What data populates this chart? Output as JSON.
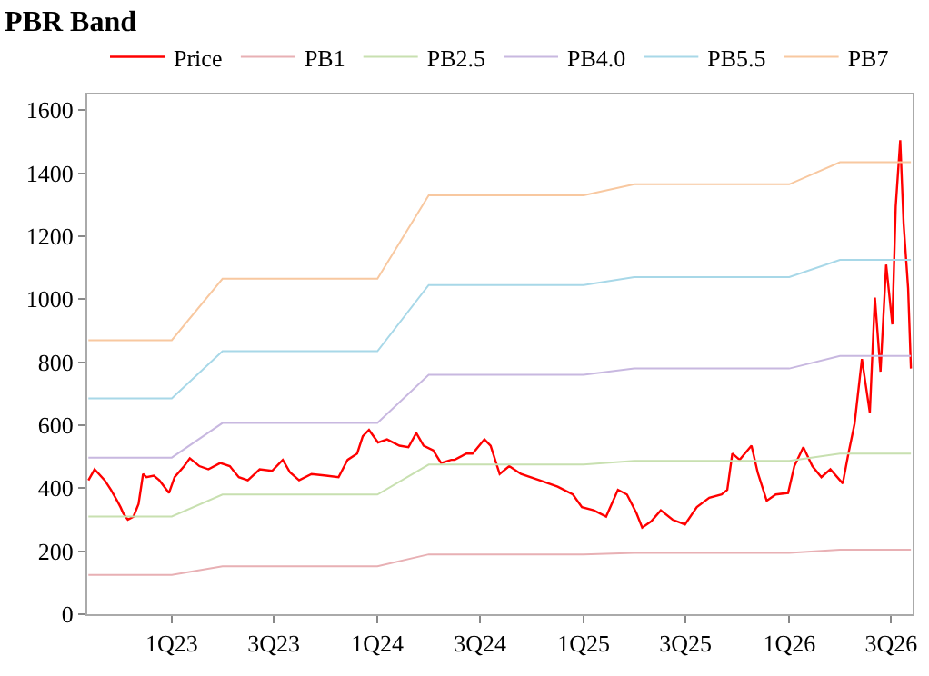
{
  "chart_data": {
    "type": "line",
    "title": "PBR Band",
    "x": [
      "2022-08-06",
      "2023-01-01",
      "2023-04-01",
      "2024-01-01",
      "2024-04-01",
      "2025-01-01",
      "2025-04-01",
      "2026-01-01",
      "2026-04-01",
      "2026-08-05"
    ],
    "series": [
      {
        "name": "Price",
        "color": "#ff0000",
        "x": [
          "2022-08-06",
          "2022-08-17",
          "2022-09-04",
          "2022-09-15",
          "2022-09-26",
          "2022-10-02",
          "2022-10-07",
          "2022-10-15",
          "2022-10-25",
          "2022-11-03",
          "2022-11-11",
          "2022-11-17",
          "2022-11-30",
          "2022-12-10",
          "2022-12-27",
          "2023-01-06",
          "2023-01-23",
          "2023-02-02",
          "2023-02-19",
          "2023-03-07",
          "2023-03-28",
          "2023-04-14",
          "2023-04-30",
          "2023-05-16",
          "2023-06-06",
          "2023-06-28",
          "2023-07-17",
          "2023-07-30",
          "2023-08-15",
          "2023-09-06",
          "2023-10-02",
          "2023-10-24",
          "2023-11-09",
          "2023-11-26",
          "2023-12-06",
          "2023-12-17",
          "2024-01-02",
          "2024-01-18",
          "2024-02-09",
          "2024-02-25",
          "2024-03-10",
          "2024-03-23",
          "2024-04-09",
          "2024-04-23",
          "2024-05-11",
          "2024-05-17",
          "2024-06-07",
          "2024-06-18",
          "2024-07-09",
          "2024-07-20",
          "2024-08-05",
          "2024-08-22",
          "2024-09-12",
          "2024-10-15",
          "2024-11-16",
          "2024-12-13",
          "2024-12-29",
          "2025-01-19",
          "2025-02-10",
          "2025-03-03",
          "2025-03-19",
          "2025-04-05",
          "2025-04-15",
          "2025-05-01",
          "2025-05-18",
          "2025-06-08",
          "2025-06-30",
          "2025-07-21",
          "2025-08-12",
          "2025-09-03",
          "2025-09-13",
          "2025-09-22",
          "2025-10-05",
          "2025-10-26",
          "2025-11-06",
          "2025-11-22",
          "2025-12-08",
          "2025-12-30",
          "2026-01-10",
          "2026-01-26",
          "2026-02-11",
          "2026-02-27",
          "2026-03-15",
          "2026-04-06",
          "2026-04-16",
          "2026-04-27",
          "2026-05-10",
          "2026-05-24",
          "2026-06-02",
          "2026-06-12",
          "2026-06-22",
          "2026-07-03",
          "2026-07-09",
          "2026-07-17",
          "2026-07-23",
          "2026-07-31",
          "2026-08-05"
        ],
        "values": [
          425,
          460,
          425,
          395,
          360,
          340,
          320,
          300,
          310,
          350,
          445,
          435,
          440,
          425,
          385,
          435,
          470,
          495,
          470,
          460,
          480,
          470,
          435,
          425,
          460,
          455,
          490,
          450,
          425,
          445,
          440,
          435,
          490,
          510,
          565,
          585,
          545,
          555,
          535,
          530,
          575,
          535,
          520,
          480,
          490,
          490,
          510,
          510,
          555,
          535,
          445,
          470,
          445,
          425,
          405,
          380,
          340,
          330,
          310,
          395,
          380,
          320,
          275,
          295,
          330,
          300,
          285,
          340,
          370,
          380,
          395,
          510,
          490,
          535,
          450,
          360,
          380,
          385,
          470,
          530,
          470,
          435,
          460,
          415,
          510,
          605,
          810,
          640,
          1005,
          770,
          1110,
          920,
          1295,
          1505,
          1240,
          1035,
          780
        ]
      },
      {
        "name": "PB1",
        "color": "#e8b0b4",
        "values": [
          125,
          125,
          152,
          152,
          190,
          190,
          195,
          195,
          205,
          205
        ]
      },
      {
        "name": "PB2.5",
        "color": "#c8e0b0",
        "values": [
          310,
          310,
          380,
          380,
          475,
          475,
          487,
          487,
          510,
          510
        ]
      },
      {
        "name": "PB4.0",
        "color": "#c8b8e0",
        "values": [
          497,
          497,
          607,
          607,
          760,
          760,
          780,
          780,
          820,
          820
        ]
      },
      {
        "name": "PB5.5",
        "color": "#a8d8e8",
        "values": [
          685,
          685,
          835,
          835,
          1045,
          1045,
          1070,
          1070,
          1125,
          1125
        ]
      },
      {
        "name": "PB7",
        "color": "#f8c8a0",
        "values": [
          870,
          870,
          1065,
          1065,
          1330,
          1330,
          1365,
          1365,
          1435,
          1435
        ]
      }
    ],
    "xlim": [
      "2022-08-04",
      "2026-08-08"
    ],
    "xticks": [
      {
        "value": "2023-01-01",
        "label": "1Q23"
      },
      {
        "value": "2023-07-01",
        "label": "3Q23"
      },
      {
        "value": "2024-01-01",
        "label": "1Q24"
      },
      {
        "value": "2024-07-01",
        "label": "3Q24"
      },
      {
        "value": "2025-01-01",
        "label": "1Q25"
      },
      {
        "value": "2025-07-01",
        "label": "3Q25"
      },
      {
        "value": "2026-01-01",
        "label": "1Q26"
      },
      {
        "value": "2026-07-01",
        "label": "3Q26"
      }
    ],
    "ylim": [
      0,
      1650
    ],
    "yticks": [
      0,
      200,
      400,
      600,
      800,
      1000,
      1200,
      1400,
      1600
    ],
    "grid": false,
    "legend": "top",
    "line_style": "solid",
    "marker": "none"
  }
}
